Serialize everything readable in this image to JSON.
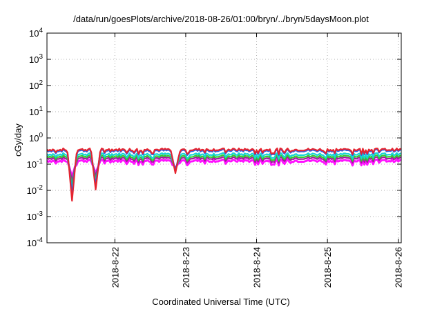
{
  "chart_data": {
    "type": "line",
    "title": "/data/run/goesPlots/archive/2018-08-26/01:00/bryn/../bryn/5daysMoon.plot",
    "xlabel": "Coordinated Universal Time (UTC)",
    "ylabel": "cGy/day",
    "yscale": "log",
    "ylim": [
      0.0001,
      10000
    ],
    "yticks": [
      {
        "exp": -4,
        "base": "10",
        "sup": "-4"
      },
      {
        "exp": -3,
        "base": "10",
        "sup": "-3"
      },
      {
        "exp": -2,
        "base": "10",
        "sup": "-2"
      },
      {
        "exp": -1,
        "base": "10",
        "sup": "-1"
      },
      {
        "exp": 0,
        "base": "10",
        "sup": "0"
      },
      {
        "exp": 1,
        "base": "10",
        "sup": "1"
      },
      {
        "exp": 2,
        "base": "10",
        "sup": "2"
      },
      {
        "exp": 3,
        "base": "10",
        "sup": "3"
      },
      {
        "exp": 4,
        "base": "10",
        "sup": "4"
      }
    ],
    "xlim": [
      "2018-08-21T01:00",
      "2018-08-26T01:00"
    ],
    "xticks": [
      {
        "label": "2018-8-22",
        "value": "2018-08-22T00:00"
      },
      {
        "label": "2018-8-23",
        "value": "2018-08-23T00:00"
      },
      {
        "label": "2018-8-24",
        "value": "2018-08-24T00:00"
      },
      {
        "label": "2018-8-25",
        "value": "2018-08-25T00:00"
      },
      {
        "label": "2018-8-26",
        "value": "2018-08-26T00:00"
      }
    ],
    "grid": true,
    "series": [
      {
        "color": "#e6242f",
        "base": 0.36
      },
      {
        "color": "#2a5fe8",
        "base": 0.33
      },
      {
        "color": "#17d3d3",
        "base": 0.24
      },
      {
        "color": "#33cc33",
        "base": 0.2
      },
      {
        "color": "#a0199a",
        "base": 0.17
      },
      {
        "color": "#ff11ff",
        "base": 0.135
      }
    ],
    "dips": [
      {
        "at": "2018-08-21T09:30",
        "value": 0.0015
      },
      {
        "at": "2018-08-21T17:30",
        "value": 0.004
      },
      {
        "at": "2018-08-22T20:30",
        "value": 0.017
      }
    ]
  }
}
